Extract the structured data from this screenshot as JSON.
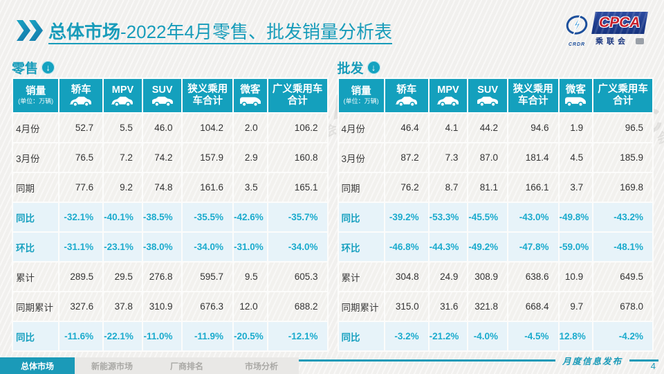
{
  "page": {
    "title_prefix": "总体市场",
    "title_rest": "-2022年4月零售、批发销量分析表",
    "footer_note": "月度信息发布",
    "page_number": "4"
  },
  "logo": {
    "cpca": "CPCA",
    "sub": "乘联会",
    "emblem": "CRDR"
  },
  "watermark_text": "CPCA",
  "watermark_sub": "乘联会",
  "columns": {
    "sales_label": "销量",
    "sales_unit": "(单位：万辆)",
    "cols": [
      {
        "label": "轿车",
        "icon": "car-icon"
      },
      {
        "label": "MPV",
        "icon": "car-icon"
      },
      {
        "label": "SUV",
        "icon": "suv-icon"
      },
      {
        "label": "狭义乘用车合计",
        "icon": null
      },
      {
        "label": "微客",
        "icon": "van-icon"
      },
      {
        "label": "广义乘用车合计",
        "icon": null
      }
    ]
  },
  "retail": {
    "label": "零售",
    "rows": [
      {
        "label": "4月份",
        "type": "num",
        "values": [
          "52.7",
          "5.5",
          "46.0",
          "104.2",
          "2.0",
          "106.2"
        ]
      },
      {
        "label": "3月份",
        "type": "num",
        "values": [
          "76.5",
          "7.2",
          "74.2",
          "157.9",
          "2.9",
          "160.8"
        ]
      },
      {
        "label": "同期",
        "type": "num",
        "values": [
          "77.6",
          "9.2",
          "74.8",
          "161.6",
          "3.5",
          "165.1"
        ]
      },
      {
        "label": "同比",
        "type": "pct",
        "values": [
          "-32.1%",
          "-40.1%",
          "-38.5%",
          "-35.5%",
          "-42.6%",
          "-35.7%"
        ]
      },
      {
        "label": "环比",
        "type": "pct",
        "values": [
          "-31.1%",
          "-23.1%",
          "-38.0%",
          "-34.0%",
          "-31.0%",
          "-34.0%"
        ]
      },
      {
        "label": "累计",
        "type": "num",
        "values": [
          "289.5",
          "29.5",
          "276.8",
          "595.7",
          "9.5",
          "605.3"
        ]
      },
      {
        "label": "同期累计",
        "type": "num",
        "values": [
          "327.6",
          "37.8",
          "310.9",
          "676.3",
          "12.0",
          "688.2"
        ]
      },
      {
        "label": "同比",
        "type": "pct",
        "values": [
          "-11.6%",
          "-22.1%",
          "-11.0%",
          "-11.9%",
          "-20.5%",
          "-12.1%"
        ]
      }
    ]
  },
  "wholesale": {
    "label": "批发",
    "rows": [
      {
        "label": "4月份",
        "type": "num",
        "values": [
          "46.4",
          "4.1",
          "44.2",
          "94.6",
          "1.9",
          "96.5"
        ]
      },
      {
        "label": "3月份",
        "type": "num",
        "values": [
          "87.2",
          "7.3",
          "87.0",
          "181.4",
          "4.5",
          "185.9"
        ]
      },
      {
        "label": "同期",
        "type": "num",
        "values": [
          "76.2",
          "8.7",
          "81.1",
          "166.1",
          "3.7",
          "169.8"
        ]
      },
      {
        "label": "同比",
        "type": "pct",
        "values": [
          "-39.2%",
          "-53.3%",
          "-45.5%",
          "-43.0%",
          "-49.8%",
          "-43.2%"
        ]
      },
      {
        "label": "环比",
        "type": "pct",
        "values": [
          "-46.8%",
          "-44.3%",
          "-49.2%",
          "-47.8%",
          "-59.0%",
          "-48.1%"
        ]
      },
      {
        "label": "累计",
        "type": "num",
        "values": [
          "304.8",
          "24.9",
          "308.9",
          "638.6",
          "10.9",
          "649.5"
        ]
      },
      {
        "label": "同期累计",
        "type": "num",
        "values": [
          "315.0",
          "31.6",
          "321.8",
          "668.4",
          "9.7",
          "678.0"
        ]
      },
      {
        "label": "同比",
        "type": "pct",
        "values": [
          "-3.2%",
          "-21.2%",
          "-4.0%",
          "-4.5%",
          "12.8%",
          "-4.2%"
        ]
      }
    ]
  },
  "footer_tabs": [
    {
      "label": "总体市场",
      "active": true
    },
    {
      "label": "新能源市场",
      "active": false
    },
    {
      "label": "厂商排名",
      "active": false
    },
    {
      "label": "市场分析",
      "active": false
    }
  ],
  "colors": {
    "accent_teal": "#1b9ab8",
    "header_teal": "#14a0bd",
    "pct_row_bg": "#e7f3f9",
    "pct_text": "#1babcd",
    "logo_blue": "#16337e",
    "logo_red": "#c8202c"
  }
}
